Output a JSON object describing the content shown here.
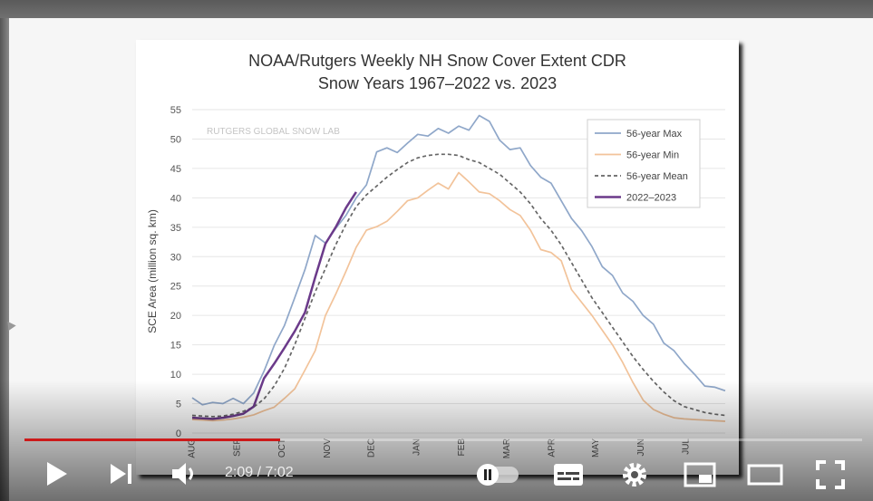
{
  "player": {
    "current_time": "2:09",
    "duration": "7:02",
    "time_separator": " / ",
    "progress": 0.305,
    "controls": {
      "play": "play-icon",
      "next": "skip-next-icon",
      "volume": "volume-icon",
      "autoplay": "autoplay-pause-toggle-icon",
      "subtitles": "subtitles-icon",
      "settings": "gear-icon",
      "miniplayer": "miniplayer-icon",
      "theater": "theater-mode-icon",
      "fullscreen": "fullscreen-icon"
    }
  },
  "chart_data": {
    "type": "line",
    "title": "NOAA/Rutgers Weekly NH Snow Cover Extent CDR",
    "subtitle": "Snow Years 1967–2022 vs. 2023",
    "watermark": "RUTGERS GLOBAL SNOW LAB",
    "ylabel": "SCE Area (million sq. km)",
    "xlabel": "",
    "ylim": [
      0,
      55
    ],
    "yticks": [
      0,
      5,
      10,
      15,
      20,
      25,
      30,
      35,
      40,
      45,
      50,
      55
    ],
    "xlim": [
      0,
      52
    ],
    "month_ticks": [
      {
        "label": "AUG",
        "week": 0
      },
      {
        "label": "SEP",
        "week": 4.4
      },
      {
        "label": "OCT",
        "week": 8.8
      },
      {
        "label": "NOV",
        "week": 13.2
      },
      {
        "label": "DEC",
        "week": 17.5
      },
      {
        "label": "JAN",
        "week": 21.9
      },
      {
        "label": "FEB",
        "week": 26.3
      },
      {
        "label": "MAR",
        "week": 30.7
      },
      {
        "label": "APR",
        "week": 35.1
      },
      {
        "label": "MAY",
        "week": 39.4
      },
      {
        "label": "JUN",
        "week": 43.8
      },
      {
        "label": "JUL",
        "week": 48.2
      }
    ],
    "grid": true,
    "legend_position": "top-right",
    "series": [
      {
        "name": "56-year Max",
        "color": "#8fa7c9",
        "style": "solid",
        "values": [
          6.0,
          4.8,
          5.2,
          5.0,
          5.9,
          5.0,
          6.8,
          10.5,
          14.9,
          18.3,
          23.0,
          27.8,
          33.6,
          32.3,
          34.8,
          37.0,
          40.0,
          42.2,
          47.8,
          48.5,
          47.7,
          49.3,
          50.8,
          50.5,
          51.8,
          51.0,
          52.2,
          51.5,
          54.0,
          53.0,
          49.8,
          48.2,
          48.5,
          45.5,
          43.5,
          42.5,
          39.5,
          36.5,
          34.4,
          31.7,
          28.3,
          26.8,
          23.8,
          22.4,
          20.0,
          18.5,
          15.3,
          14.0,
          11.8,
          10.0,
          8.0,
          7.8,
          7.2
        ]
      },
      {
        "name": "56-year Min",
        "color": "#f2c39a",
        "style": "solid",
        "values": [
          2.3,
          2.2,
          2.1,
          2.2,
          2.4,
          2.7,
          3.1,
          3.8,
          4.4,
          5.9,
          7.5,
          10.7,
          14.0,
          20.0,
          23.6,
          27.5,
          31.6,
          34.5,
          35.1,
          36.0,
          37.7,
          39.5,
          40.0,
          41.3,
          42.5,
          41.5,
          44.3,
          42.7,
          41.0,
          40.7,
          39.5,
          38.0,
          37.0,
          34.5,
          31.2,
          30.7,
          29.3,
          24.4,
          22.2,
          20.0,
          17.5,
          15.0,
          12.0,
          8.6,
          5.6,
          4.0,
          3.2,
          2.6,
          2.4,
          2.3,
          2.2,
          2.1,
          2.0
        ]
      },
      {
        "name": "56-year Mean",
        "color": "#666666",
        "style": "dashed",
        "values": [
          3.0,
          2.9,
          2.8,
          2.9,
          3.2,
          3.7,
          4.4,
          5.8,
          8.0,
          11.0,
          15.0,
          19.5,
          24.0,
          28.0,
          32.0,
          35.5,
          38.5,
          40.5,
          42.0,
          43.5,
          44.8,
          46.0,
          46.8,
          47.2,
          47.4,
          47.4,
          47.2,
          46.5,
          46.0,
          45.0,
          44.0,
          42.5,
          41.0,
          39.0,
          36.5,
          34.5,
          32.0,
          29.0,
          26.0,
          23.0,
          20.5,
          18.0,
          15.5,
          13.0,
          10.8,
          8.8,
          7.0,
          5.5,
          4.5,
          4.0,
          3.5,
          3.2,
          3.0
        ]
      },
      {
        "name": "2022–2023",
        "color": "#6b3a8a",
        "style": "solid",
        "values": [
          2.6,
          2.5,
          2.4,
          2.6,
          2.9,
          3.3,
          4.5,
          9.3,
          11.8,
          14.5,
          17.3,
          20.5,
          26.5,
          32.2,
          35.0,
          38.3,
          41.0
        ]
      }
    ]
  }
}
